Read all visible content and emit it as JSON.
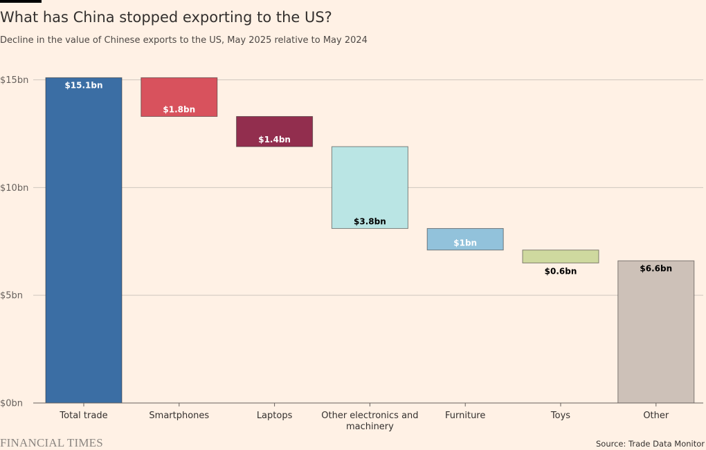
{
  "title": "What has China stopped exporting to the US?",
  "subtitle": "Decline in the value of Chinese exports to the US, May 2025 relative to May 2024",
  "brand": "FINANCIAL TIMES",
  "source": "Source: Trade Data Monitor",
  "chart_data": {
    "type": "bar",
    "subtype": "waterfall",
    "title": "What has China stopped exporting to the US?",
    "subtitle": "Decline in the value of Chinese exports to the US, May 2025 relative to May 2024",
    "ylim": [
      0,
      15
    ],
    "yticks": [
      0,
      5,
      10,
      15
    ],
    "ytick_labels": [
      "$0bn",
      "$5bn",
      "$10bn",
      "$15bn"
    ],
    "grid": true,
    "categories": [
      [
        "Total trade"
      ],
      [
        "Smartphones"
      ],
      [
        "Laptops"
      ],
      [
        "Other electronics and",
        "machinery"
      ],
      [
        "Furniture"
      ],
      [
        "Toys"
      ],
      [
        "Other"
      ]
    ],
    "bars": [
      {
        "kind": "total",
        "start": 0,
        "end": 15.1,
        "label": "$15.1bn",
        "color": "#3b6ea4",
        "label_color": "#ffffff",
        "label_pos": "top"
      },
      {
        "kind": "step",
        "start": 13.3,
        "end": 15.1,
        "label": "$1.8bn",
        "color": "#d8525d",
        "label_color": "#ffffff",
        "label_pos": "bottom"
      },
      {
        "kind": "step",
        "start": 11.9,
        "end": 13.3,
        "label": "$1.4bn",
        "color": "#922e4e",
        "label_color": "#ffffff",
        "label_pos": "bottom"
      },
      {
        "kind": "step",
        "start": 8.1,
        "end": 11.9,
        "label": "$3.8bn",
        "color": "#bae5e4",
        "label_color": "#000000",
        "label_pos": "bottom"
      },
      {
        "kind": "step",
        "start": 7.1,
        "end": 8.1,
        "label": "$1bn",
        "color": "#92c2db",
        "label_color": "#ffffff",
        "label_pos": "bottom"
      },
      {
        "kind": "step",
        "start": 6.5,
        "end": 7.1,
        "label": "$0.6bn",
        "color": "#cfd99f",
        "label_color": "#000000",
        "label_pos": "below"
      },
      {
        "kind": "total",
        "start": 0,
        "end": 6.6,
        "label": "$6.6bn",
        "color": "#cdc1b8",
        "label_color": "#000000",
        "label_pos": "top"
      }
    ]
  }
}
